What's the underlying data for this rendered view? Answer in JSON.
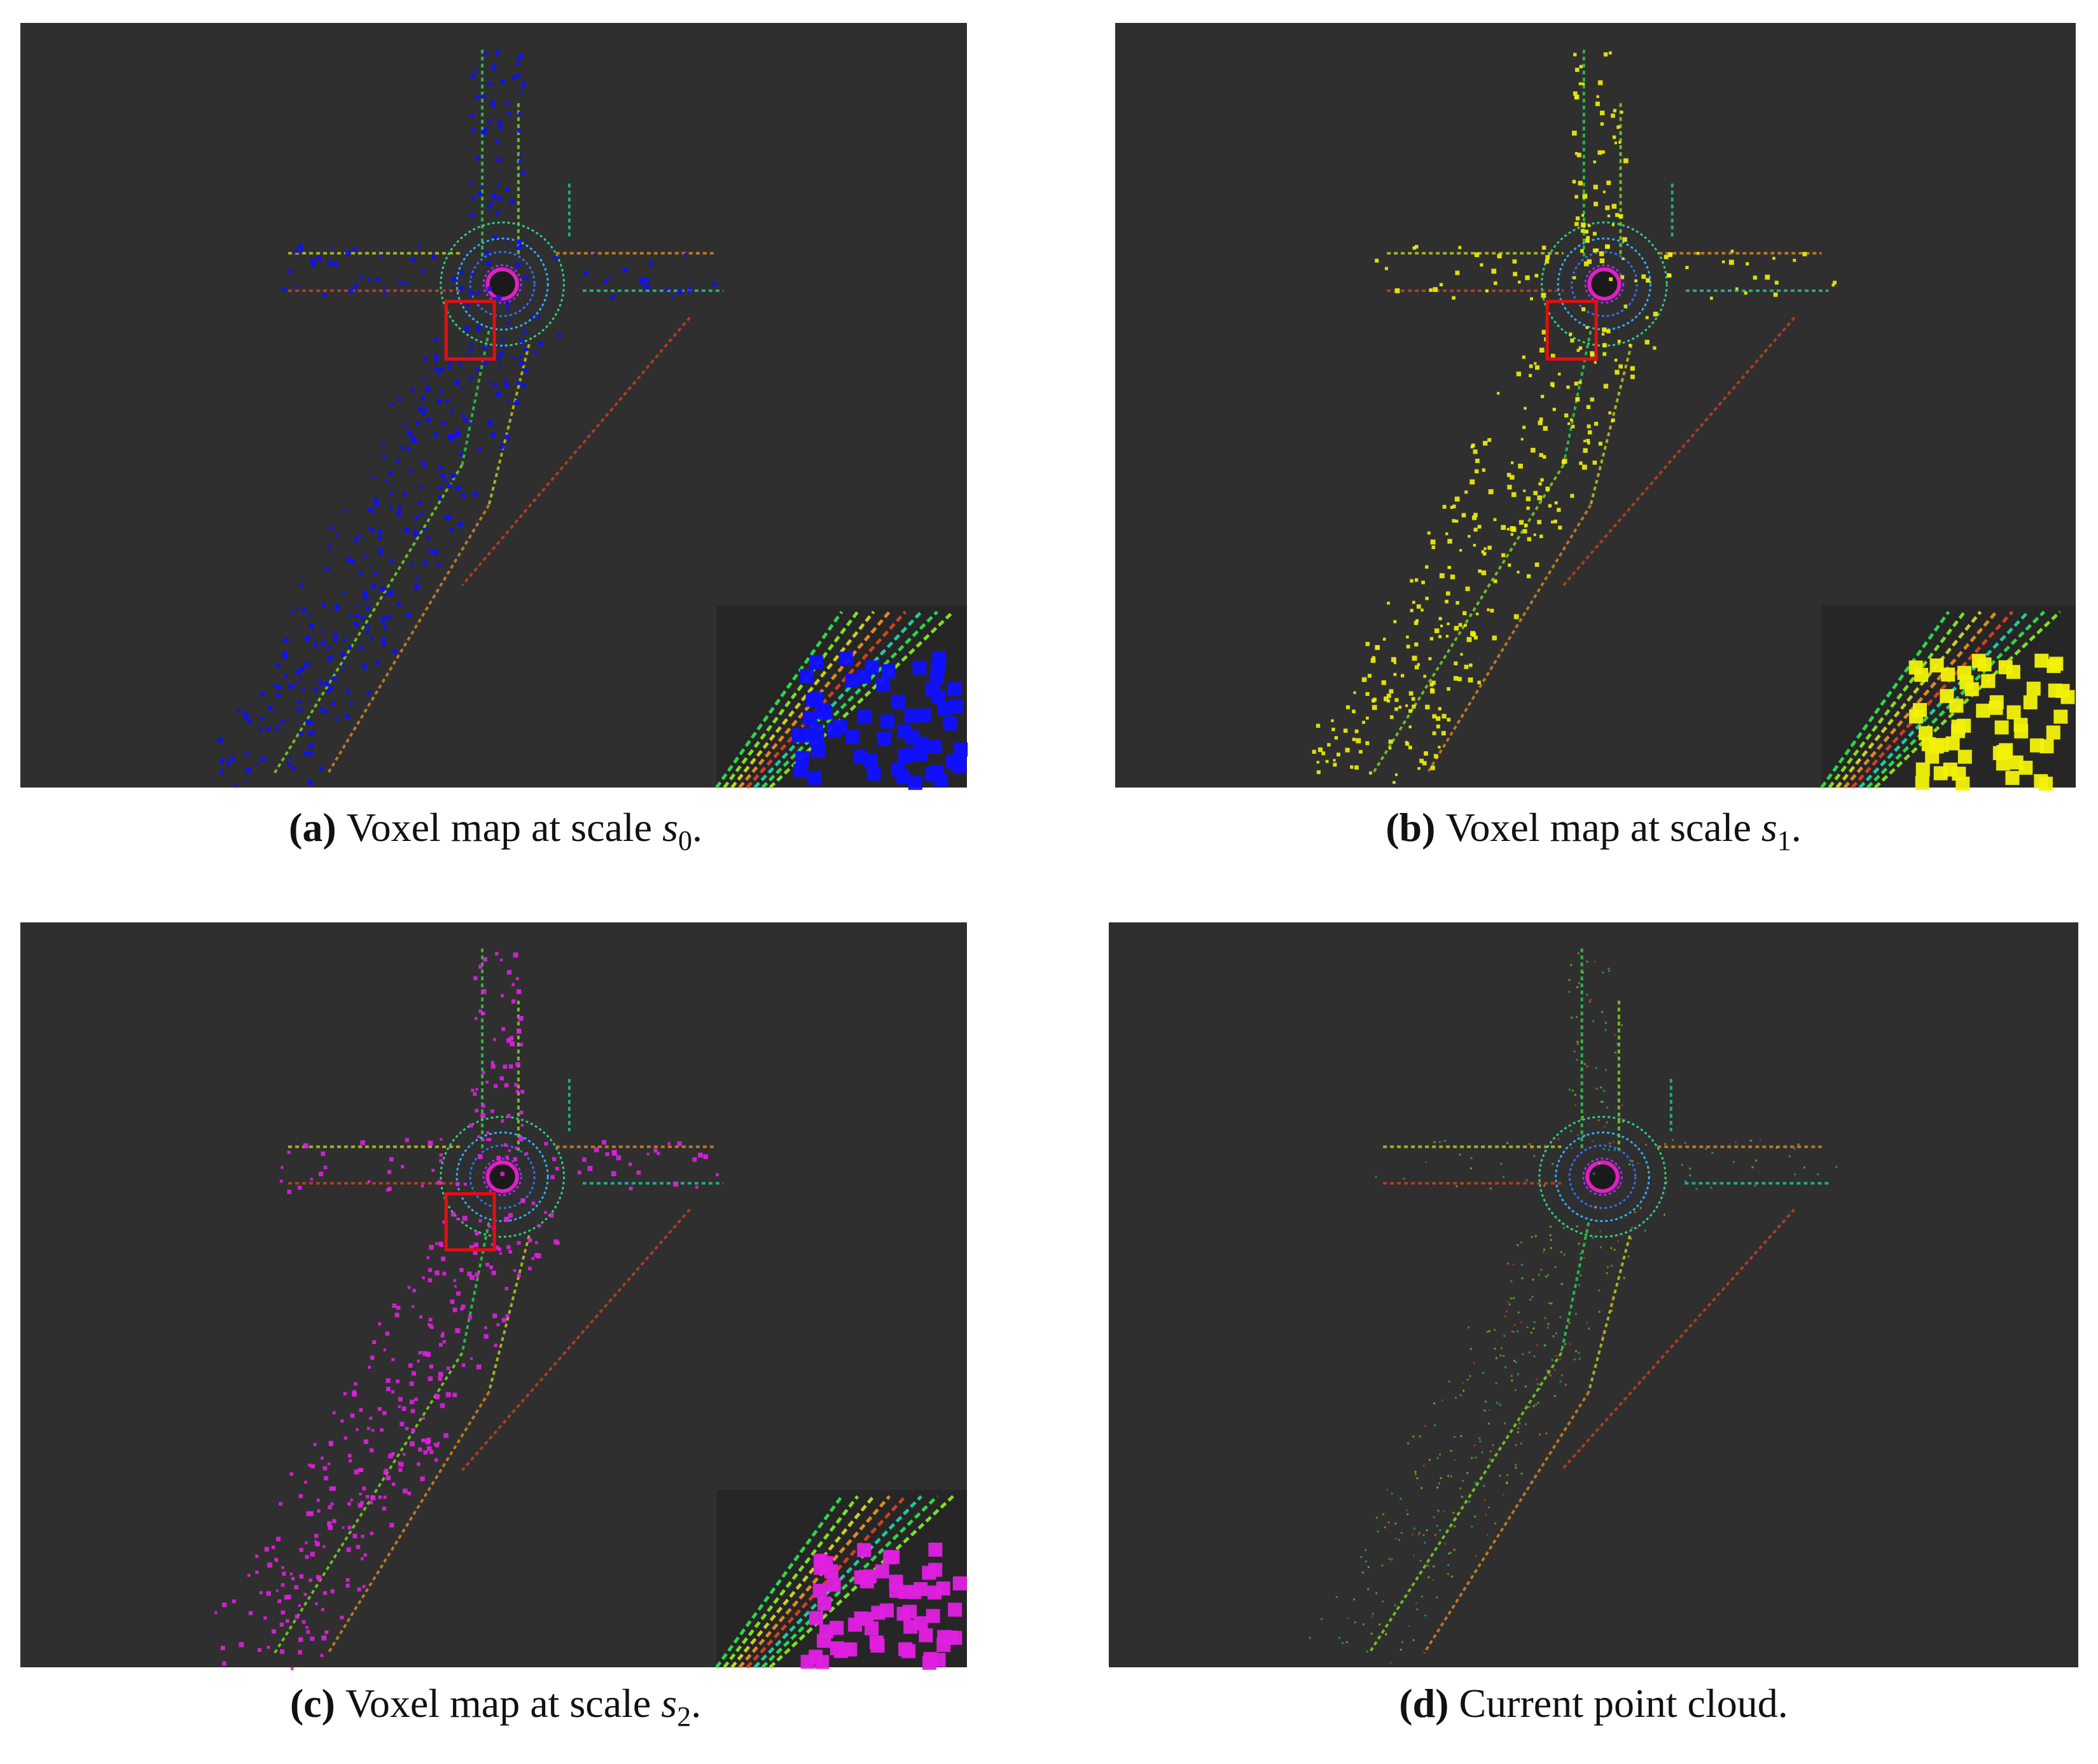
{
  "panels": [
    {
      "label": "(a)",
      "text": "Voxel map at scale",
      "symbol": "s",
      "subscript": "0",
      "end": "."
    },
    {
      "label": "(b)",
      "text": "Voxel map at scale",
      "symbol": "s",
      "subscript": "1",
      "end": "."
    },
    {
      "label": "(c)",
      "text": "Voxel map at scale",
      "symbol": "s",
      "subscript": "2",
      "end": "."
    },
    {
      "label": "(d)",
      "text": "Current point cloud."
    }
  ]
}
